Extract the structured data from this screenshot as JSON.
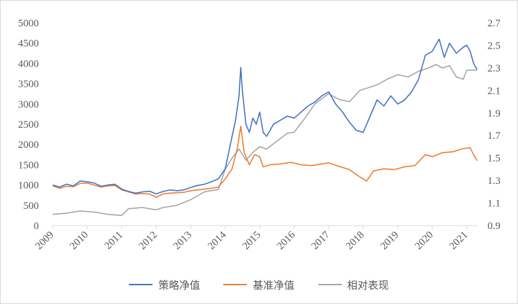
{
  "chart_data": {
    "type": "line",
    "xlim": [
      2009,
      2021.3
    ],
    "x_ticks": [
      "2009",
      "2010",
      "2011",
      "2012",
      "2013",
      "2014",
      "2015",
      "2016",
      "2017",
      "2018",
      "2019",
      "2020",
      "2021"
    ],
    "y_left": {
      "ylim": [
        0,
        5000
      ],
      "ticks": [
        "0",
        "500",
        "1000",
        "1500",
        "2000",
        "2500",
        "3000",
        "3500",
        "4000",
        "4500",
        "5000"
      ]
    },
    "y_right": {
      "ylim": [
        0.9,
        2.7
      ],
      "ticks": [
        "0.9",
        "1.1",
        "1.3",
        "1.5",
        "1.7",
        "1.9",
        "2.1",
        "2.3",
        "2.5",
        "2.7"
      ]
    },
    "grid": false,
    "legend_position": "bottom",
    "series": [
      {
        "name": "策略净值",
        "color": "#4472c4",
        "axis": "left",
        "points": [
          [
            2009.0,
            1000
          ],
          [
            2009.2,
            950
          ],
          [
            2009.4,
            1020
          ],
          [
            2009.6,
            980
          ],
          [
            2009.8,
            1100
          ],
          [
            2010.0,
            1080
          ],
          [
            2010.2,
            1050
          ],
          [
            2010.4,
            970
          ],
          [
            2010.6,
            1000
          ],
          [
            2010.8,
            1020
          ],
          [
            2011.0,
            900
          ],
          [
            2011.2,
            840
          ],
          [
            2011.4,
            800
          ],
          [
            2011.6,
            830
          ],
          [
            2011.8,
            850
          ],
          [
            2012.0,
            780
          ],
          [
            2012.2,
            840
          ],
          [
            2012.4,
            880
          ],
          [
            2012.6,
            860
          ],
          [
            2012.8,
            880
          ],
          [
            2013.0,
            940
          ],
          [
            2013.2,
            990
          ],
          [
            2013.4,
            1020
          ],
          [
            2013.6,
            1080
          ],
          [
            2013.8,
            1150
          ],
          [
            2014.0,
            1400
          ],
          [
            2014.15,
            2000
          ],
          [
            2014.3,
            2600
          ],
          [
            2014.4,
            3200
          ],
          [
            2014.45,
            3900
          ],
          [
            2014.5,
            3300
          ],
          [
            2014.6,
            2500
          ],
          [
            2014.7,
            2300
          ],
          [
            2014.8,
            2650
          ],
          [
            2014.9,
            2500
          ],
          [
            2015.0,
            2800
          ],
          [
            2015.1,
            2300
          ],
          [
            2015.2,
            2200
          ],
          [
            2015.4,
            2500
          ],
          [
            2015.6,
            2600
          ],
          [
            2015.8,
            2700
          ],
          [
            2016.0,
            2650
          ],
          [
            2016.2,
            2800
          ],
          [
            2016.4,
            2950
          ],
          [
            2016.6,
            3050
          ],
          [
            2016.8,
            3200
          ],
          [
            2017.0,
            3300
          ],
          [
            2017.2,
            3000
          ],
          [
            2017.4,
            2800
          ],
          [
            2017.6,
            2550
          ],
          [
            2017.8,
            2350
          ],
          [
            2018.0,
            2300
          ],
          [
            2018.2,
            2700
          ],
          [
            2018.4,
            3100
          ],
          [
            2018.6,
            2950
          ],
          [
            2018.8,
            3200
          ],
          [
            2019.0,
            3000
          ],
          [
            2019.2,
            3100
          ],
          [
            2019.4,
            3300
          ],
          [
            2019.6,
            3600
          ],
          [
            2019.8,
            4200
          ],
          [
            2020.0,
            4300
          ],
          [
            2020.2,
            4600
          ],
          [
            2020.35,
            4150
          ],
          [
            2020.5,
            4500
          ],
          [
            2020.7,
            4250
          ],
          [
            2020.9,
            4400
          ],
          [
            2021.0,
            4450
          ],
          [
            2021.1,
            4300
          ],
          [
            2021.2,
            4000
          ],
          [
            2021.3,
            3850
          ]
        ]
      },
      {
        "name": "基准净值",
        "color": "#ed7d31",
        "axis": "left",
        "points": [
          [
            2009.0,
            980
          ],
          [
            2009.2,
            920
          ],
          [
            2009.4,
            970
          ],
          [
            2009.6,
            960
          ],
          [
            2009.8,
            1040
          ],
          [
            2010.0,
            1050
          ],
          [
            2010.2,
            1000
          ],
          [
            2010.4,
            950
          ],
          [
            2010.6,
            980
          ],
          [
            2010.8,
            990
          ],
          [
            2011.0,
            880
          ],
          [
            2011.2,
            830
          ],
          [
            2011.4,
            780
          ],
          [
            2011.6,
            790
          ],
          [
            2011.8,
            780
          ],
          [
            2012.0,
            700
          ],
          [
            2012.2,
            780
          ],
          [
            2012.4,
            800
          ],
          [
            2012.6,
            810
          ],
          [
            2012.8,
            820
          ],
          [
            2013.0,
            860
          ],
          [
            2013.2,
            880
          ],
          [
            2013.4,
            900
          ],
          [
            2013.6,
            920
          ],
          [
            2013.8,
            950
          ],
          [
            2014.0,
            1150
          ],
          [
            2014.2,
            1400
          ],
          [
            2014.35,
            1900
          ],
          [
            2014.45,
            2450
          ],
          [
            2014.55,
            1800
          ],
          [
            2014.7,
            1500
          ],
          [
            2014.85,
            1750
          ],
          [
            2015.0,
            1700
          ],
          [
            2015.1,
            1450
          ],
          [
            2015.3,
            1500
          ],
          [
            2015.6,
            1520
          ],
          [
            2015.9,
            1560
          ],
          [
            2016.2,
            1500
          ],
          [
            2016.5,
            1480
          ],
          [
            2016.8,
            1520
          ],
          [
            2017.0,
            1550
          ],
          [
            2017.3,
            1460
          ],
          [
            2017.6,
            1380
          ],
          [
            2017.9,
            1200
          ],
          [
            2018.1,
            1100
          ],
          [
            2018.3,
            1350
          ],
          [
            2018.6,
            1400
          ],
          [
            2018.9,
            1380
          ],
          [
            2019.2,
            1450
          ],
          [
            2019.5,
            1480
          ],
          [
            2019.8,
            1750
          ],
          [
            2020.0,
            1700
          ],
          [
            2020.3,
            1800
          ],
          [
            2020.6,
            1820
          ],
          [
            2020.9,
            1900
          ],
          [
            2021.1,
            1920
          ],
          [
            2021.2,
            1750
          ],
          [
            2021.3,
            1600
          ]
        ]
      },
      {
        "name": "相对表现",
        "color": "#a5a5a5",
        "axis": "right",
        "points": [
          [
            2009.0,
            1.0
          ],
          [
            2009.4,
            1.01
          ],
          [
            2009.8,
            1.03
          ],
          [
            2010.2,
            1.02
          ],
          [
            2010.6,
            1.0
          ],
          [
            2011.0,
            0.99
          ],
          [
            2011.2,
            1.05
          ],
          [
            2011.6,
            1.06
          ],
          [
            2012.0,
            1.04
          ],
          [
            2012.2,
            1.06
          ],
          [
            2012.6,
            1.08
          ],
          [
            2013.0,
            1.13
          ],
          [
            2013.4,
            1.2
          ],
          [
            2013.8,
            1.22
          ],
          [
            2014.0,
            1.4
          ],
          [
            2014.2,
            1.5
          ],
          [
            2014.4,
            1.58
          ],
          [
            2014.6,
            1.48
          ],
          [
            2014.8,
            1.55
          ],
          [
            2015.0,
            1.6
          ],
          [
            2015.2,
            1.58
          ],
          [
            2015.5,
            1.65
          ],
          [
            2015.8,
            1.72
          ],
          [
            2016.0,
            1.73
          ],
          [
            2016.3,
            1.85
          ],
          [
            2016.6,
            1.98
          ],
          [
            2016.9,
            2.05
          ],
          [
            2017.0,
            2.07
          ],
          [
            2017.3,
            2.02
          ],
          [
            2017.6,
            2.0
          ],
          [
            2017.9,
            2.1
          ],
          [
            2018.1,
            2.12
          ],
          [
            2018.4,
            2.15
          ],
          [
            2018.7,
            2.2
          ],
          [
            2019.0,
            2.24
          ],
          [
            2019.3,
            2.22
          ],
          [
            2019.6,
            2.27
          ],
          [
            2019.9,
            2.3
          ],
          [
            2020.1,
            2.33
          ],
          [
            2020.3,
            2.3
          ],
          [
            2020.5,
            2.32
          ],
          [
            2020.7,
            2.22
          ],
          [
            2020.9,
            2.2
          ],
          [
            2021.0,
            2.28
          ],
          [
            2021.2,
            2.28
          ],
          [
            2021.3,
            2.28
          ]
        ]
      }
    ]
  }
}
